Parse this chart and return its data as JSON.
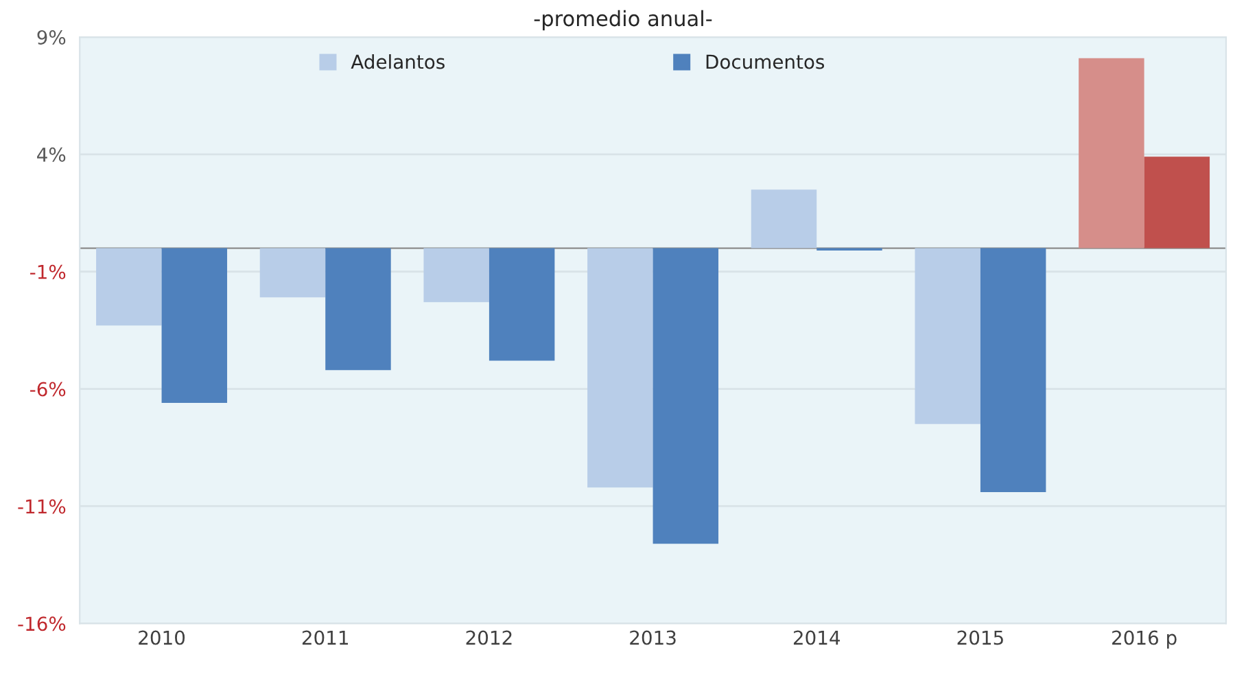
{
  "chart_data": {
    "type": "bar",
    "title": "-promedio anual-",
    "categories": [
      "2010",
      "2011",
      "2012",
      "2013",
      "2014",
      "2015",
      "2016 p"
    ],
    "series": [
      {
        "name": "Adelantos",
        "color": "#b8cde8",
        "colors": [
          "#b8cde8",
          "#b8cde8",
          "#b8cde8",
          "#b8cde8",
          "#b8cde8",
          "#b8cde8",
          "#d68e8a"
        ],
        "values": [
          -3.3,
          -2.1,
          -2.3,
          -10.2,
          2.5,
          -7.5,
          8.1
        ]
      },
      {
        "name": "Documentos",
        "color": "#4f81bd",
        "colors": [
          "#4f81bd",
          "#4f81bd",
          "#4f81bd",
          "#4f81bd",
          "#4f81bd",
          "#4f81bd",
          "#c0504d"
        ],
        "values": [
          -6.6,
          -5.2,
          -4.8,
          -12.6,
          -0.1,
          -10.4,
          3.9
        ]
      }
    ],
    "ylim": [
      -16,
      9
    ],
    "yticks": [
      {
        "value": -16,
        "label": "-16%"
      },
      {
        "value": -11,
        "label": "-11%"
      },
      {
        "value": -6,
        "label": "-6%"
      },
      {
        "value": -1,
        "label": "-1%"
      },
      {
        "value": 4,
        "label": "4%"
      },
      {
        "value": 9,
        "label": "9%"
      }
    ],
    "grid": "y",
    "legend": "top"
  }
}
